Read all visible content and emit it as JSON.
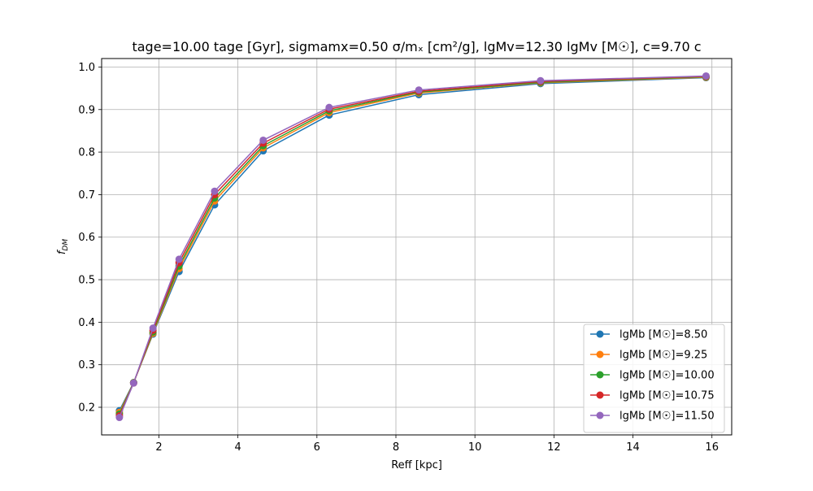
{
  "chart_data": {
    "type": "line",
    "title": "tage=10.00 tage [Gyr], sigmamx=0.50 σ/mₓ [cm²/g], lgMv=12.30 lgMv [M☉], c=9.70 c",
    "xlabel": "Reff [kpc]",
    "ylabel": "f_DM",
    "xlim": [
      0.55,
      16.5
    ],
    "ylim": [
      0.135,
      1.02
    ],
    "grid": true,
    "legend_position": "lower right",
    "xticks": [
      2,
      4,
      6,
      8,
      10,
      12,
      14,
      16
    ],
    "yticks": [
      0.2,
      0.3,
      0.4,
      0.5,
      0.6,
      0.7,
      0.8,
      0.9,
      1.0
    ],
    "x": [
      1.0,
      1.36,
      1.85,
      2.51,
      3.41,
      4.64,
      6.31,
      8.58,
      11.66,
      15.85
    ],
    "series": [
      {
        "name": "lgMb [M☉]=8.50",
        "color": "#1f77b4",
        "values": [
          0.192,
          0.258,
          0.372,
          0.519,
          0.676,
          0.803,
          0.887,
          0.935,
          0.961,
          0.975
        ]
      },
      {
        "name": "lgMb [M☉]=9.25",
        "color": "#ff7f0e",
        "values": [
          0.188,
          0.258,
          0.374,
          0.526,
          0.685,
          0.81,
          0.893,
          0.939,
          0.963,
          0.976
        ]
      },
      {
        "name": "lgMb [M☉]=10.00",
        "color": "#2ca02c",
        "values": [
          0.184,
          0.258,
          0.377,
          0.532,
          0.692,
          0.815,
          0.897,
          0.941,
          0.964,
          0.977
        ]
      },
      {
        "name": "lgMb [M☉]=10.75",
        "color": "#d62728",
        "values": [
          0.18,
          0.257,
          0.381,
          0.54,
          0.7,
          0.821,
          0.901,
          0.943,
          0.966,
          0.978
        ]
      },
      {
        "name": "lgMb [M☉]=11.50",
        "color": "#9467bd",
        "values": [
          0.176,
          0.257,
          0.386,
          0.548,
          0.708,
          0.828,
          0.905,
          0.946,
          0.968,
          0.979
        ]
      }
    ]
  }
}
